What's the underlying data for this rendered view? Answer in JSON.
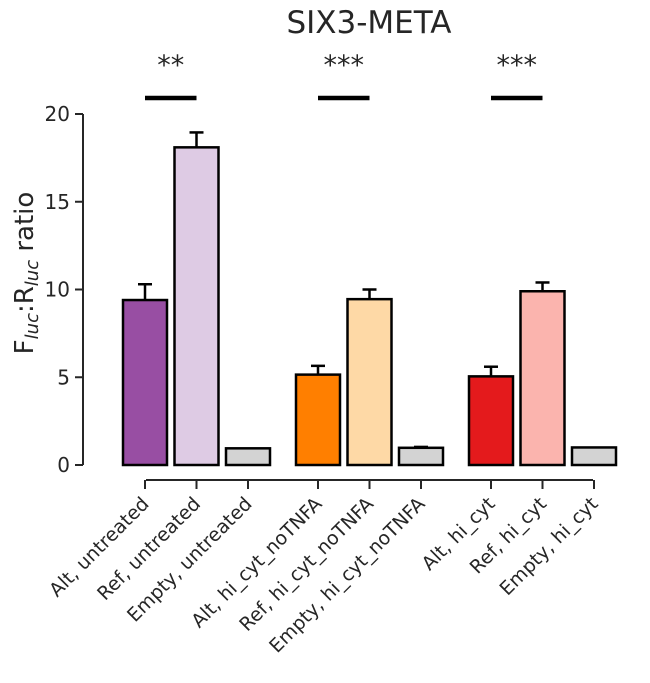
{
  "chart_data": {
    "type": "bar",
    "title": "SIX3-META",
    "ylabel": {
      "main": "F",
      "sub1": "luc",
      "mid": ":R",
      "sub2": "luc",
      "tail": " ratio"
    },
    "xlabel": "",
    "ylim": [
      0,
      20
    ],
    "yticks": [
      "0",
      "5",
      "10",
      "15",
      "20"
    ],
    "grid": false,
    "categories": [
      "Alt, untreated",
      "Ref, untreated",
      "Empty, untreated",
      "Alt, hi_cyt_noTNFA",
      "Ref, hi_cyt_noTNFA",
      "Empty, hi_cyt_noTNFA",
      "Alt, hi_cyt",
      "Ref, hi_cyt",
      "Empty, hi_cyt"
    ],
    "values": [
      9.4,
      18.1,
      0.95,
      5.15,
      9.45,
      0.98,
      5.05,
      9.9,
      1.0
    ],
    "errors": [
      0.9,
      0.85,
      0.0,
      0.5,
      0.55,
      0.05,
      0.55,
      0.5,
      0.0
    ],
    "colors": [
      "#984ea3",
      "#decbe4",
      "#d3d3d3",
      "#ff7f00",
      "#fed9a6",
      "#d3d3d3",
      "#e41a1c",
      "#fbb4ae",
      "#d3d3d3"
    ],
    "significance": [
      {
        "between": [
          0,
          1
        ],
        "label": "**"
      },
      {
        "between": [
          3,
          4
        ],
        "label": "***"
      },
      {
        "between": [
          6,
          7
        ],
        "label": "***"
      }
    ]
  }
}
